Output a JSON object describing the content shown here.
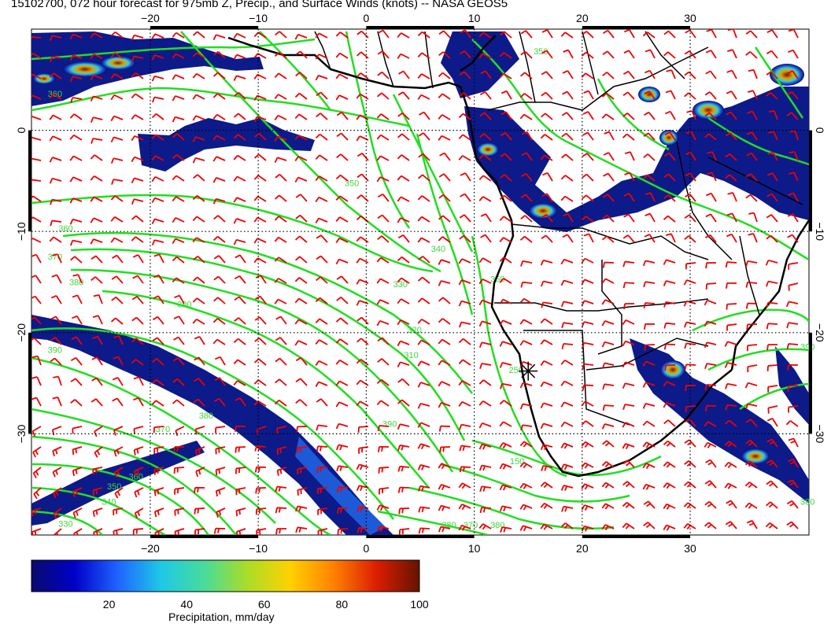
{
  "title": "15102700, 072 hour forecast for 975mb Z, Precip., and Surface Winds (knots) -- NASA GEOS5",
  "axes": {
    "lon_range": [
      -31,
      41
    ],
    "lat_range": [
      -40,
      10
    ],
    "lon_ticks": [
      {
        "v": -20,
        "label": "−20"
      },
      {
        "v": -10,
        "label": "−10"
      },
      {
        "v": 0,
        "label": "0"
      },
      {
        "v": 10,
        "label": "10"
      },
      {
        "v": 20,
        "label": "20"
      },
      {
        "v": 30,
        "label": "30"
      }
    ],
    "lat_ticks": [
      {
        "v": 0,
        "label": "0"
      },
      {
        "v": -10,
        "label": "−10"
      },
      {
        "v": -20,
        "label": "−20"
      },
      {
        "v": -30,
        "label": "−30"
      }
    ],
    "grid": true
  },
  "contour_labels": [
    {
      "text": "350",
      "lon": 15.5,
      "lat": 7.5
    },
    {
      "text": "360",
      "lon": -29.5,
      "lat": 3.3
    },
    {
      "text": "360",
      "lon": -28.5,
      "lat": -10
    },
    {
      "text": "370",
      "lon": -29.5,
      "lat": -12.8
    },
    {
      "text": "380",
      "lon": -27.5,
      "lat": -15.3
    },
    {
      "text": "390",
      "lon": -17.5,
      "lat": -17.5
    },
    {
      "text": "390",
      "lon": -29.5,
      "lat": -22
    },
    {
      "text": "380",
      "lon": -15.5,
      "lat": -28.5
    },
    {
      "text": "370",
      "lon": -19.5,
      "lat": -29.8
    },
    {
      "text": "360",
      "lon": -22,
      "lat": -34.5
    },
    {
      "text": "350",
      "lon": -24,
      "lat": -35.5
    },
    {
      "text": "340",
      "lon": -24.5,
      "lat": -37
    },
    {
      "text": "330",
      "lon": -28.5,
      "lat": -39.2
    },
    {
      "text": "350",
      "lon": -2,
      "lat": -5.5
    },
    {
      "text": "340",
      "lon": 6,
      "lat": -12
    },
    {
      "text": "330",
      "lon": 2.5,
      "lat": -15.5
    },
    {
      "text": "320",
      "lon": 3.8,
      "lat": -20
    },
    {
      "text": "310",
      "lon": 3.5,
      "lat": -22.5
    },
    {
      "text": "390",
      "lon": 1.5,
      "lat": -29.3
    },
    {
      "text": "350",
      "lon": 11.5,
      "lat": -15
    },
    {
      "text": "250",
      "lon": 13.2,
      "lat": -24
    },
    {
      "text": "150",
      "lon": 13.3,
      "lat": -33
    },
    {
      "text": "380",
      "lon": 7,
      "lat": -39.3
    },
    {
      "text": "370",
      "lon": 9,
      "lat": -39.3
    },
    {
      "text": "380",
      "lon": 11.5,
      "lat": -39.3
    },
    {
      "text": "390",
      "lon": 40.2,
      "lat": -21.7
    },
    {
      "text": "380",
      "lon": 40.2,
      "lat": -37
    }
  ],
  "colorbar": {
    "label": "Precipitation, mm/day",
    "range": [
      0,
      100
    ],
    "ticks": [
      {
        "v": 20,
        "label": "20"
      },
      {
        "v": 40,
        "label": "40"
      },
      {
        "v": 60,
        "label": "60"
      },
      {
        "v": 80,
        "label": "80"
      },
      {
        "v": 100,
        "label": "100"
      }
    ],
    "colors": [
      "#0a0a6e",
      "#0000c8",
      "#1e64ff",
      "#1ec8e6",
      "#46dc9b",
      "#aadc28",
      "#ffd200",
      "#ff8200",
      "#dc1e00",
      "#641400"
    ]
  },
  "colors": {
    "contour": "#22dd22",
    "wind_barb": "#ee0000",
    "coastline": "#000000",
    "precip_low": "#0a0a6e",
    "precip_mid": "#2a7fff",
    "precip_high": "#8b0000"
  },
  "marker": {
    "symbol": "asterisk",
    "lon": 15,
    "lat": -23.8
  }
}
